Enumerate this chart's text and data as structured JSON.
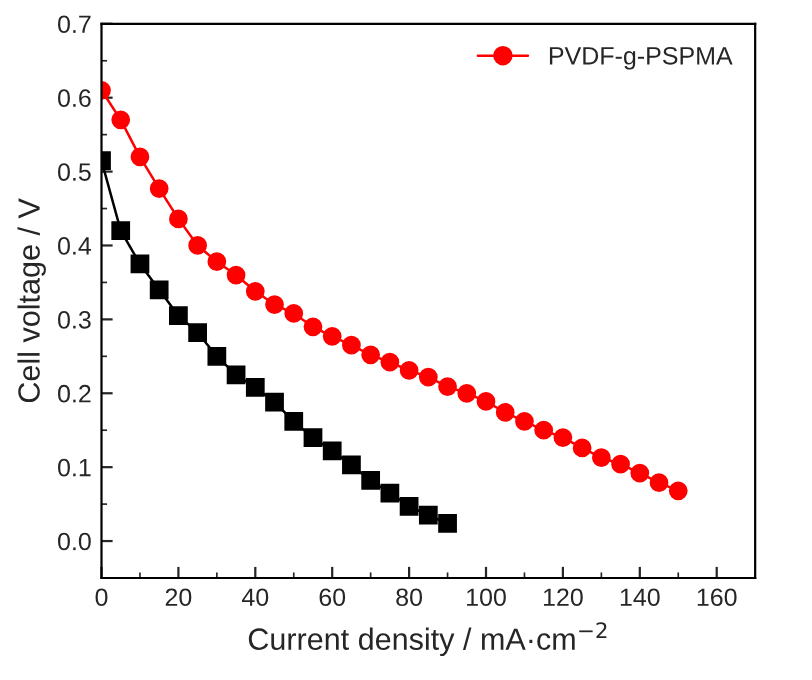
{
  "chart_data": {
    "type": "line",
    "xlabel": "Current density / mA·cm$^{−2}$",
    "ylabel": "Cell voltage / V",
    "xlim": [
      0,
      170
    ],
    "xticks": [
      0,
      20,
      40,
      60,
      80,
      100,
      120,
      140,
      160
    ],
    "ylim": [
      -0.05,
      0.7
    ],
    "yticks": [
      {
        "value": 0,
        "label": "0.0"
      },
      {
        "value": 0.1,
        "label": "0.1"
      },
      {
        "value": 0.2,
        "label": "0.2"
      },
      {
        "value": 0.3,
        "label": "0.3"
      },
      {
        "value": 0.4,
        "label": "0.4"
      },
      {
        "value": 0.5,
        "label": "0.5"
      },
      {
        "value": 0.6,
        "label": "0.6"
      },
      {
        "value": 0.7,
        "label": "0.7"
      }
    ],
    "legend": "top right",
    "grid": false,
    "series": [
      {
        "color": "#000000",
        "marker": "square",
        "x": [
          0,
          5,
          10,
          15,
          20,
          25,
          30,
          35,
          40,
          45,
          50,
          55,
          60,
          65,
          70,
          75,
          80,
          85,
          90
        ],
        "values": [
          0.515,
          0.42,
          0.375,
          0.34,
          0.305,
          0.282,
          0.25,
          0.225,
          0.208,
          0.188,
          0.162,
          0.14,
          0.122,
          0.103,
          0.082,
          0.065,
          0.047,
          0.035,
          0.024
        ]
      },
      {
        "name": "PVDF-g-PSPMA",
        "color": "#ff0000",
        "marker": "circle",
        "x": [
          0,
          5,
          10,
          15,
          20,
          25,
          30,
          35,
          40,
          45,
          50,
          55,
          60,
          65,
          70,
          75,
          80,
          85,
          90,
          95,
          100,
          105,
          110,
          115,
          120,
          125,
          130,
          135,
          140,
          145,
          150
        ],
        "values": [
          0.61,
          0.57,
          0.52,
          0.477,
          0.436,
          0.4,
          0.378,
          0.36,
          0.338,
          0.32,
          0.308,
          0.29,
          0.277,
          0.265,
          0.252,
          0.242,
          0.231,
          0.222,
          0.209,
          0.2,
          0.189,
          0.174,
          0.162,
          0.15,
          0.14,
          0.126,
          0.113,
          0.104,
          0.092,
          0.079,
          0.068
        ]
      }
    ]
  }
}
